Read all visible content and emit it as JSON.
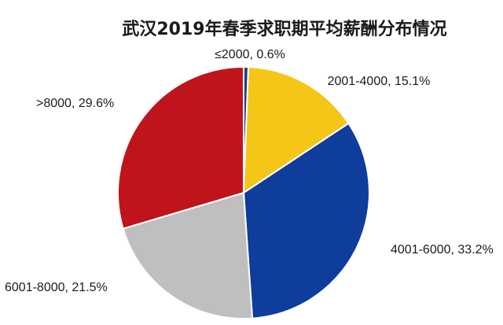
{
  "chart_data": {
    "type": "pie",
    "title": "武汉2019年春季求职期平均薪酬分布情况",
    "slices": [
      {
        "label": "≤2000, 0.6%",
        "category": "≤2000",
        "value": 0.6,
        "color": "#1f3c88"
      },
      {
        "label": "2001-4000, 15.1%",
        "category": "2001-4000",
        "value": 15.1,
        "color": "#f5c518"
      },
      {
        "label": "4001-6000, 33.2%",
        "category": "4001-6000",
        "value": 33.2,
        "color": "#0e3d9c"
      },
      {
        "label": "6001-8000, 21.5%",
        "category": "6001-8000",
        "value": 21.5,
        "color": "#bfbfbf"
      },
      {
        "label": ">8000, 29.6%",
        "category": ">8000",
        "value": 29.6,
        "color": "#c0141c"
      }
    ],
    "legend": "none",
    "grid": false
  }
}
